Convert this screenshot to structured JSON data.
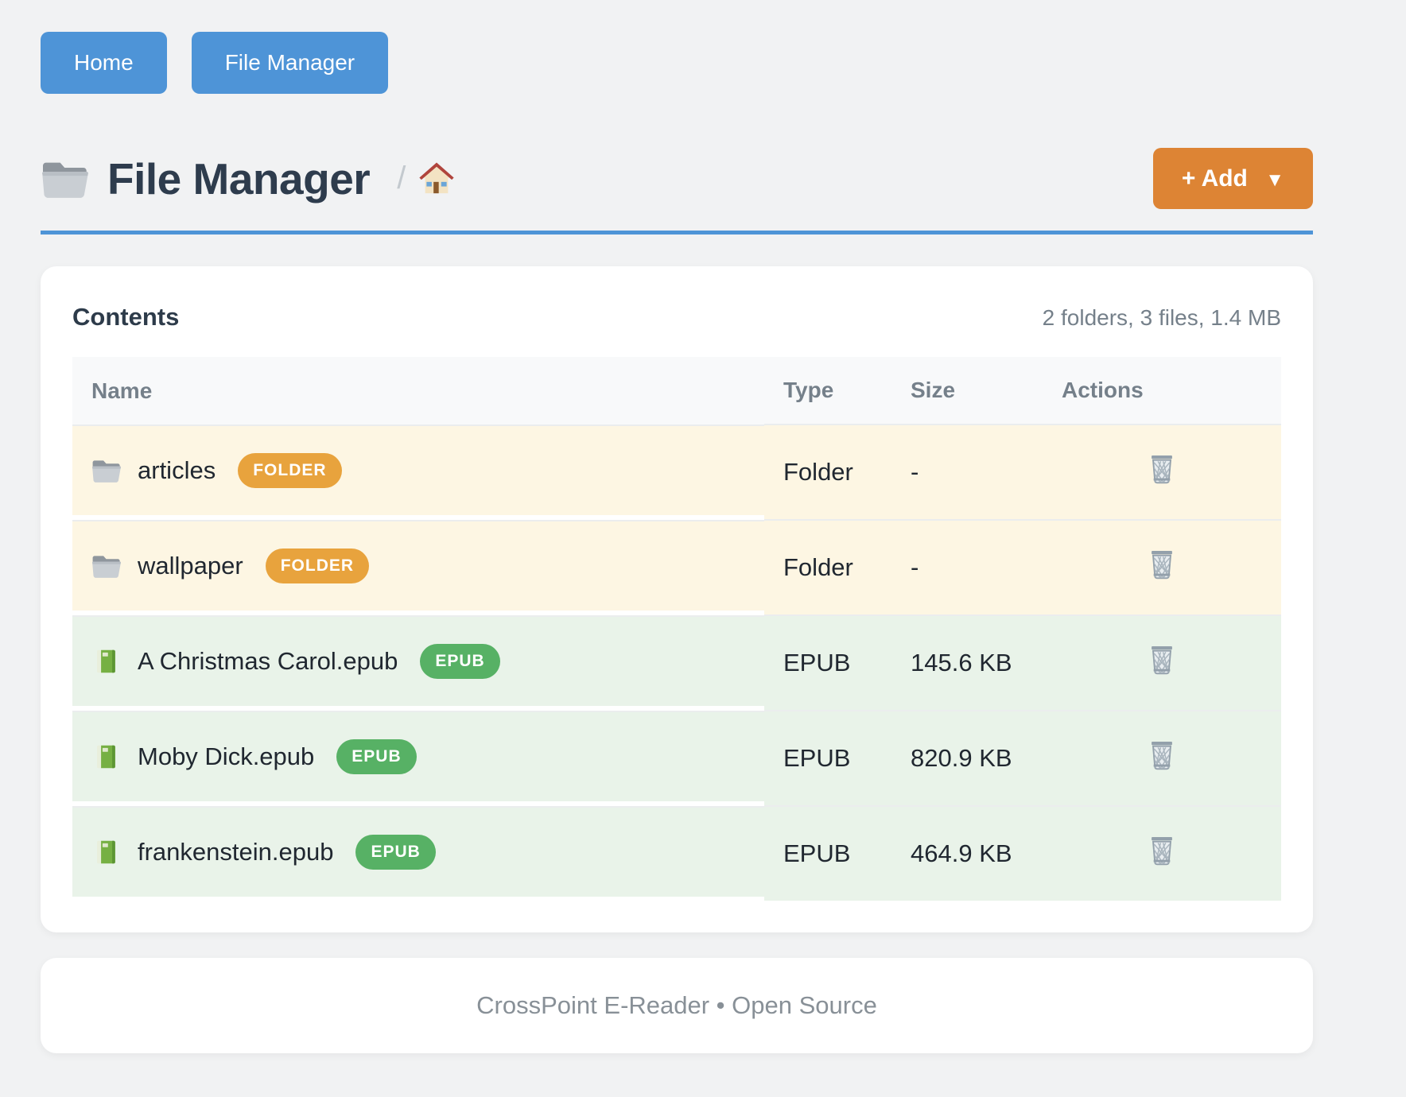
{
  "nav": {
    "buttons": [
      {
        "label": "Home"
      },
      {
        "label": "File Manager"
      }
    ]
  },
  "header": {
    "icon": "folder-icon",
    "title": "File Manager",
    "breadcrumb": {
      "separator": "/",
      "home_icon": "house-icon"
    },
    "add_button": {
      "label": "+ Add",
      "caret": "▼"
    }
  },
  "contents": {
    "title": "Contents",
    "summary": "2 folders, 3 files, 1.4 MB",
    "columns": [
      "Name",
      "Type",
      "Size",
      "Actions"
    ],
    "rows": [
      {
        "kind": "folder",
        "icon": "folder-icon",
        "name": "articles",
        "badge": "FOLDER",
        "type": "Folder",
        "size": "-",
        "action": "trash-icon"
      },
      {
        "kind": "folder",
        "icon": "folder-icon",
        "name": "wallpaper",
        "badge": "FOLDER",
        "type": "Folder",
        "size": "-",
        "action": "trash-icon"
      },
      {
        "kind": "file",
        "icon": "book-icon",
        "name": "A Christmas Carol.epub",
        "badge": "EPUB",
        "type": "EPUB",
        "size": "145.6 KB",
        "action": "trash-icon"
      },
      {
        "kind": "file",
        "icon": "book-icon",
        "name": "Moby Dick.epub",
        "badge": "EPUB",
        "type": "EPUB",
        "size": "820.9 KB",
        "action": "trash-icon"
      },
      {
        "kind": "file",
        "icon": "book-icon",
        "name": "frankenstein.epub",
        "badge": "EPUB",
        "type": "EPUB",
        "size": "464.9 KB",
        "action": "trash-icon"
      }
    ]
  },
  "footer": {
    "text": "CrossPoint E-Reader • Open Source"
  },
  "colors": {
    "nav_button": "#4e94d7",
    "accent_rule": "#4e94d7",
    "add_button": "#dd8434",
    "badge_folder": "#e8a33d",
    "badge_file": "#57b165",
    "folder_row_bg": "#fdf6e3",
    "file_row_bg": "#e9f3e9",
    "title_text": "#2e3c4d",
    "muted_text": "#75808a"
  }
}
